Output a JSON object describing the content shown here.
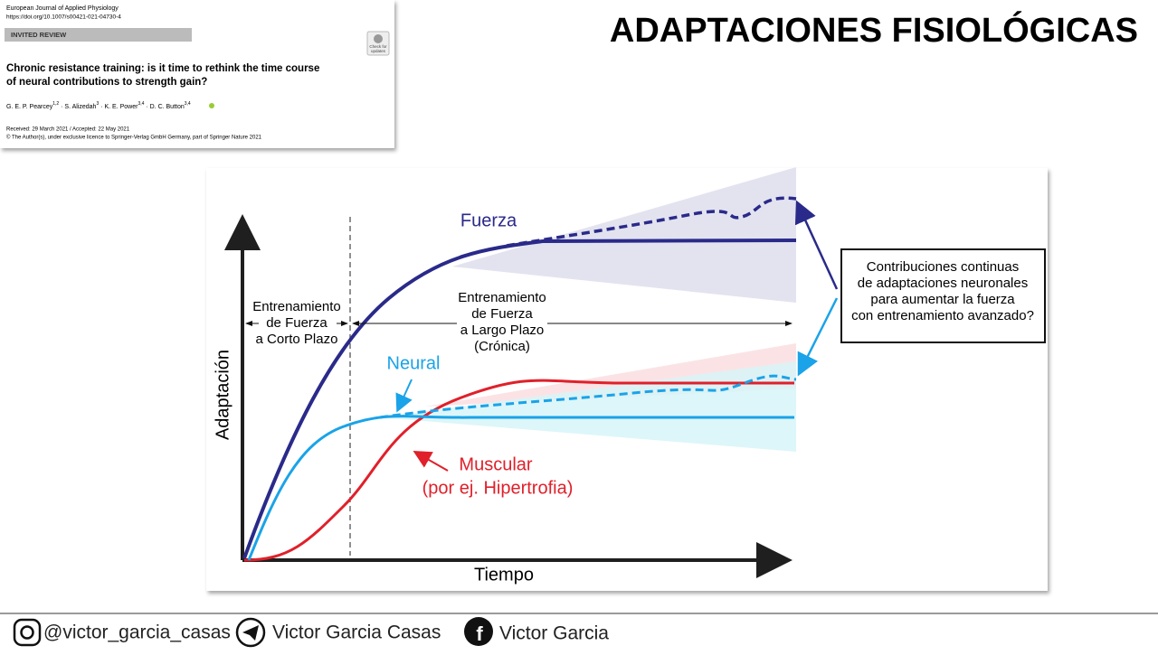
{
  "title": "ADAPTACIONES FISIOLÓGICAS",
  "paper": {
    "journal": "European Journal of Applied Physiology",
    "doi": "https://doi.org/10.1007/s00421-021-04730-4",
    "section": "INVITED REVIEW",
    "badge": [
      "Check for",
      "updates"
    ],
    "title_lines": [
      "Chronic resistance training: is it time to rethink the time course",
      "of neural contributions to strength gain?"
    ],
    "authors": [
      {
        "name": "G. E. P. Pearcey",
        "sup": "1,2"
      },
      {
        "name": "S. Alizedah",
        "sup": "3"
      },
      {
        "name": "K. E. Power",
        "sup": "3,4"
      },
      {
        "name": "D. C. Button",
        "sup": "3,4"
      }
    ],
    "received": "Received: 29 March 2021 / Accepted: 22 May 2021",
    "copyright": "© The Author(s), under exclusive licence to Springer-Verlag GmbH Germany, part of Springer Nature 2021"
  },
  "diagram": {
    "y_axis": "Adaptación",
    "x_axis": "Tiempo",
    "short_term": [
      "Entrenamiento",
      "de Fuerza",
      "a Corto Plazo"
    ],
    "long_term": [
      "Entrenamiento",
      "de Fuerza",
      "a Largo Plazo",
      "(Crónica)"
    ],
    "curves": [
      {
        "label": [
          "Fuerza"
        ]
      },
      {
        "label": [
          "Neural"
        ]
      },
      {
        "label": [
          "Muscular",
          "(por ej. Hipertrofia)"
        ]
      }
    ],
    "callout": [
      "Contribuciones continuas",
      "de adaptaciones neuronales",
      "para aumentar la fuerza",
      "con entrenamiento avanzado?"
    ]
  },
  "footer": {
    "instagram": "@victor_garcia_casas",
    "telegram": "Victor Garcia Casas",
    "facebook": "Victor Garcia"
  }
}
